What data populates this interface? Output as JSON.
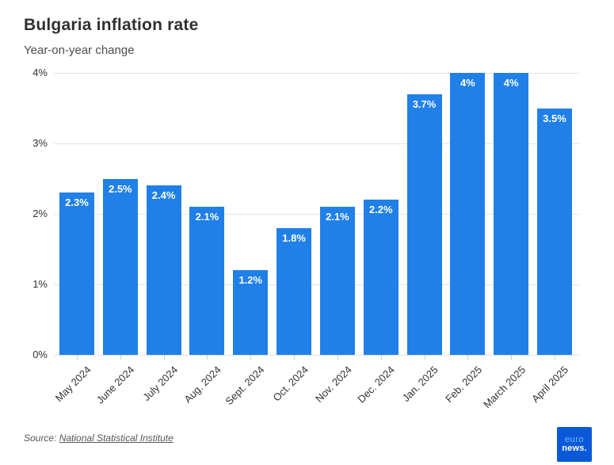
{
  "header": {
    "title": "Bulgaria inflation rate",
    "subtitle": "Year-on-year change"
  },
  "chart_data": {
    "type": "bar",
    "title": "Bulgaria inflation rate",
    "subtitle": "Year-on-year change",
    "categories": [
      "May 2024",
      "June 2024",
      "July 2024",
      "Aug. 2024",
      "Sept. 2024",
      "Oct. 2024",
      "Nov. 2024",
      "Dec. 2024",
      "Jan. 2025",
      "Feb. 2025",
      "March 2025",
      "April 2025"
    ],
    "values": [
      2.3,
      2.5,
      2.4,
      2.1,
      1.2,
      1.8,
      2.1,
      2.2,
      3.7,
      4,
      4,
      3.5
    ],
    "bar_labels": [
      "2.3%",
      "2.5%",
      "2.4%",
      "2.1%",
      "1.2%",
      "1.8%",
      "2.1%",
      "2.2%",
      "3.7%",
      "4%",
      "4%",
      "3.5%"
    ],
    "xlabel": "",
    "ylabel": "",
    "ylim": [
      0,
      4
    ],
    "yticks": [
      {
        "value": 0,
        "label": "0%"
      },
      {
        "value": 1,
        "label": "1%"
      },
      {
        "value": 2,
        "label": "2%"
      },
      {
        "value": 3,
        "label": "3%"
      },
      {
        "value": 4,
        "label": "4%"
      }
    ],
    "grid": true,
    "legend": false,
    "bar_color": "#2080e8",
    "bar_label_color": "#ffffff",
    "axis_text_color": "#333333",
    "gridline_color": "#e4e4e4"
  },
  "footer": {
    "source_prefix": "Source:",
    "source_link_text": "National Statistical Institute"
  },
  "logo": {
    "line1": "euro",
    "line2": "news.",
    "bg_color": "#0b59d9",
    "line1_color": "#6eb6ff",
    "line2_color": "#ffffff"
  }
}
